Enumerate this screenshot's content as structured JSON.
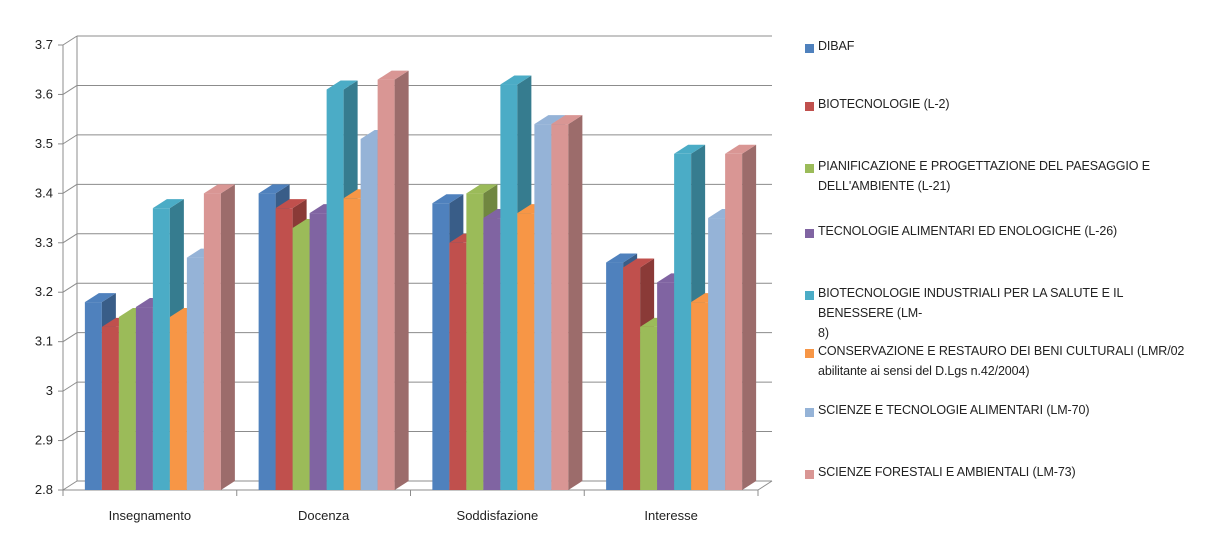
{
  "chart_data": {
    "type": "bar",
    "categories": [
      "Insegnamento",
      "Docenza",
      "Soddisfazione",
      "Interesse"
    ],
    "series": [
      {
        "name": "DIBAF",
        "color": "#4F81BD",
        "values": [
          3.18,
          3.4,
          3.38,
          3.26
        ]
      },
      {
        "name": "BIOTECNOLOGIE  (L-2)",
        "color": "#C0504D",
        "values": [
          3.13,
          3.37,
          3.3,
          3.25
        ]
      },
      {
        "name": "PIANIFICAZIONE E PROGETTAZIONE DEL PAESAGGIO E DELL'AMBIENTE  (L-21)",
        "color": "#9BBB59",
        "values": [
          3.15,
          3.33,
          3.4,
          3.13
        ]
      },
      {
        "name": "TECNOLOGIE ALIMENTARI ED ENOLOGICHE (L-26)",
        "color": "#8064A2",
        "values": [
          3.17,
          3.36,
          3.35,
          3.22
        ]
      },
      {
        "name": "BIOTECNOLOGIE INDUSTRIALI PER LA SALUTE E IL BENESSERE (LM-8)",
        "color": "#4BACC6",
        "values": [
          3.37,
          3.61,
          3.62,
          3.48
        ]
      },
      {
        "name": "CONSERVAZIONE E RESTAURO DEI  BENI CULTURALI (LMR/02 abilitante ai sensi del D.Lgs n.42/2004)",
        "color": "#F79646",
        "values": [
          3.15,
          3.39,
          3.36,
          3.18
        ]
      },
      {
        "name": "SCIENZE E TECNOLOGIE ALIMENTARI (LM-70)",
        "color": "#95B3D7",
        "values": [
          3.27,
          3.51,
          3.54,
          3.35
        ]
      },
      {
        "name": "SCIENZE FORESTALI E AMBIENTALI (LM-73)",
        "color": "#D99694",
        "values": [
          3.4,
          3.63,
          3.54,
          3.48
        ]
      }
    ],
    "yticks": [
      "2.8",
      "2.9",
      "3",
      "3.1",
      "3.2",
      "3.3",
      "3.4",
      "3.5",
      "3.6",
      "3.7"
    ],
    "ylim": [
      2.8,
      3.7
    ],
    "grid": true,
    "legend_position": "right",
    "title": "",
    "xlabel": "",
    "ylabel": ""
  },
  "legend": {
    "items": [
      {
        "lines": [
          "DIBAF"
        ]
      },
      {
        "lines": [
          "BIOTECNOLOGIE  (L-2)"
        ]
      },
      {
        "lines": [
          "PIANIFICAZIONE E PROGETTAZIONE DEL PAESAGGIO E",
          "DELL'AMBIENTE  (L-21)"
        ]
      },
      {
        "lines": [
          "TECNOLOGIE ALIMENTARI ED ENOLOGICHE (L-26)"
        ]
      },
      {
        "lines": [
          "BIOTECNOLOGIE INDUSTRIALI PER LA SALUTE E IL BENESSERE (LM-",
          "8)"
        ]
      },
      {
        "lines": [
          "CONSERVAZIONE E RESTAURO DEI  BENI CULTURALI (LMR/02",
          "abilitante ai sensi del D.Lgs n.42/2004)"
        ]
      },
      {
        "lines": [
          "SCIENZE E TECNOLOGIE ALIMENTARI (LM-70)"
        ]
      },
      {
        "lines": [
          "SCIENZE FORESTALI E AMBIENTALI (LM-73)"
        ]
      }
    ]
  }
}
